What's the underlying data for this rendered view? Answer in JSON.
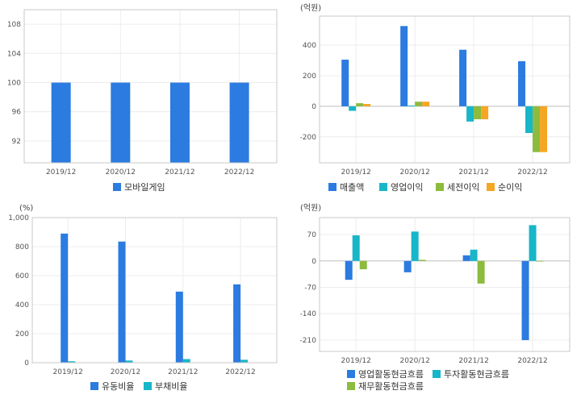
{
  "chart_data": [
    {
      "type": "bar",
      "unit": "",
      "categories": [
        "2019/12",
        "2020/12",
        "2021/12",
        "2022/12"
      ],
      "yticks": [
        92,
        96,
        100,
        104,
        108
      ],
      "ylim": [
        89,
        110
      ],
      "series": [
        {
          "name": "모바일게임",
          "color": "#2b7be0",
          "values": [
            100,
            100,
            100,
            100
          ]
        }
      ],
      "legend_position": "bottom"
    },
    {
      "type": "bar",
      "unit": "(억원)",
      "categories": [
        "2019/12",
        "2020/12",
        "2021/12",
        "2022/12"
      ],
      "yticks": [
        -200,
        0,
        200,
        400
      ],
      "ylim": [
        -370,
        590
      ],
      "series": [
        {
          "name": "매출액",
          "color": "#2b7be0",
          "values": [
            305,
            525,
            370,
            295
          ]
        },
        {
          "name": "영업이익",
          "color": "#17b6c8",
          "values": [
            -30,
            5,
            -100,
            -175
          ]
        },
        {
          "name": "세전이익",
          "color": "#8dbb3e",
          "values": [
            20,
            30,
            -85,
            -300
          ]
        },
        {
          "name": "순이익",
          "color": "#f5a623",
          "values": [
            15,
            30,
            -85,
            -300
          ]
        }
      ],
      "legend_position": "bottom"
    },
    {
      "type": "bar",
      "unit": "(%)",
      "categories": [
        "2019/12",
        "2020/12",
        "2021/12",
        "2022/12"
      ],
      "yticks": [
        0,
        200,
        400,
        600,
        800,
        1000
      ],
      "ylim": [
        0,
        1000
      ],
      "series": [
        {
          "name": "유동비율",
          "color": "#2b7be0",
          "values": [
            890,
            835,
            490,
            540
          ]
        },
        {
          "name": "부채비율",
          "color": "#17b6c8",
          "values": [
            10,
            15,
            25,
            20
          ]
        }
      ],
      "legend_position": "bottom"
    },
    {
      "type": "bar",
      "unit": "(억원)",
      "categories": [
        "2019/12",
        "2020/12",
        "2021/12",
        "2022/12"
      ],
      "yticks": [
        -210,
        -140,
        -70,
        0,
        70
      ],
      "ylim": [
        -240,
        115
      ],
      "series": [
        {
          "name": "영업활동현금흐름",
          "color": "#2b7be0",
          "values": [
            -50,
            -30,
            15,
            -210
          ]
        },
        {
          "name": "투자활동현금흐름",
          "color": "#17b6c8",
          "values": [
            68,
            78,
            30,
            95
          ]
        },
        {
          "name": "재무활동현금흐름",
          "color": "#8dbb3e",
          "values": [
            -22,
            3,
            -60,
            0
          ]
        }
      ],
      "legend_position": "bottom"
    }
  ]
}
